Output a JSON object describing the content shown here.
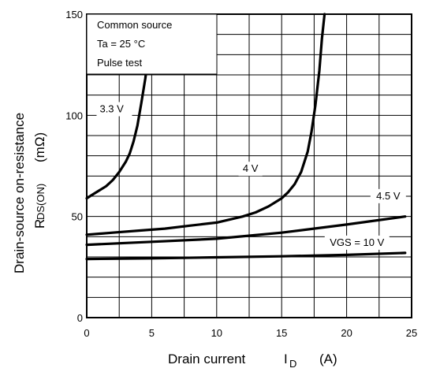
{
  "chart_data": {
    "type": "line",
    "title": "",
    "xlabel": "Drain current",
    "xlabel_symbol": "I",
    "xlabel_symbol_sub": "D",
    "xlabel_unit": "(A)",
    "ylabel": "Drain-source on-resistance",
    "ylabel_symbol": "R",
    "ylabel_symbol_sub": "DS(ON)",
    "ylabel_unit": "(mΩ)",
    "xlim": [
      0,
      25
    ],
    "ylim": [
      0,
      150
    ],
    "x_ticks": [
      "0",
      "5",
      "10",
      "15",
      "20",
      "25"
    ],
    "y_ticks": [
      "0",
      "50",
      "100",
      "150"
    ],
    "grid": true,
    "conditions": [
      "Common source",
      "Ta = 25 °C",
      "Pulse test"
    ],
    "series": [
      {
        "name": "3.3 V",
        "x": [
          0,
          0.5,
          1,
          1.5,
          2,
          2.5,
          3,
          3.3,
          3.6,
          3.9,
          4.2,
          4.5,
          4.8
        ],
        "y": [
          59,
          61,
          63,
          65,
          68,
          72,
          77,
          81,
          87,
          95,
          106,
          118,
          132
        ]
      },
      {
        "name": "4 V",
        "x": [
          0,
          2,
          4,
          6,
          8,
          10,
          12,
          13,
          14,
          15,
          15.5,
          16,
          16.5,
          17,
          17.3,
          17.6,
          17.9,
          18.1,
          18.3
        ],
        "y": [
          41,
          42,
          43,
          44,
          45.5,
          47,
          50,
          52,
          55,
          59,
          62,
          66,
          72,
          82,
          92,
          105,
          122,
          138,
          150
        ]
      },
      {
        "name": "4.5 V",
        "x": [
          0,
          5,
          10,
          15,
          20,
          24.5
        ],
        "y": [
          36,
          37.5,
          39,
          42,
          46,
          50
        ]
      },
      {
        "name": "VGS = 10 V",
        "x": [
          0,
          5,
          10,
          15,
          20,
          24.5
        ],
        "y": [
          29,
          29.3,
          29.8,
          30.3,
          31,
          32
        ]
      }
    ]
  }
}
